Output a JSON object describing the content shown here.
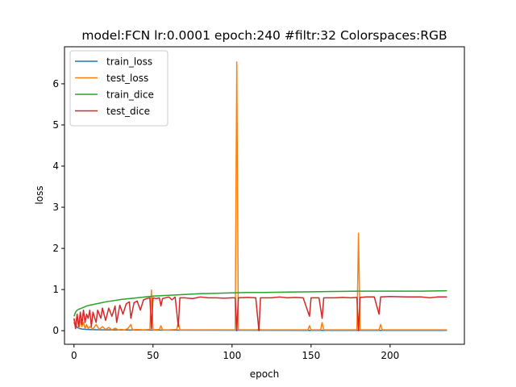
{
  "chart_data": {
    "type": "line",
    "title": "model:FCN lr:0.0001 epoch:240 #filtr:32 Colorspaces:RGB",
    "xlabel": "epoch",
    "ylabel": "loss",
    "xlim": [
      -6,
      247
    ],
    "ylim": [
      -0.33,
      6.9
    ],
    "xticks": [
      0,
      50,
      100,
      150,
      200
    ],
    "yticks": [
      0,
      1,
      2,
      3,
      4,
      5,
      6
    ],
    "xtick_labels": [
      "0",
      "50",
      "100",
      "150",
      "200"
    ],
    "ytick_labels": [
      "0",
      "1",
      "2",
      "3",
      "4",
      "5",
      "6"
    ],
    "grid": false,
    "legend_position": "upper-left",
    "series": [
      {
        "name": "train_loss",
        "color": "#1f77b4",
        "points": [
          [
            0,
            0.2
          ],
          [
            1,
            0.13
          ],
          [
            2,
            0.08
          ],
          [
            3,
            0.06
          ],
          [
            5,
            0.04
          ],
          [
            8,
            0.03
          ],
          [
            12,
            0.025
          ],
          [
            20,
            0.02
          ],
          [
            40,
            0.015
          ],
          [
            80,
            0.012
          ],
          [
            120,
            0.01
          ],
          [
            180,
            0.008
          ],
          [
            236,
            0.007
          ]
        ]
      },
      {
        "name": "test_loss",
        "color": "#ff7f0e",
        "points": [
          [
            0,
            0.3
          ],
          [
            1,
            0.12
          ],
          [
            2,
            0.4
          ],
          [
            3,
            0.05
          ],
          [
            4,
            0.25
          ],
          [
            5,
            0.1
          ],
          [
            6,
            0.2
          ],
          [
            7,
            0.05
          ],
          [
            8,
            0.15
          ],
          [
            9,
            0.05
          ],
          [
            10,
            0.1
          ],
          [
            12,
            0.04
          ],
          [
            14,
            0.15
          ],
          [
            16,
            0.03
          ],
          [
            18,
            0.1
          ],
          [
            20,
            0.03
          ],
          [
            22,
            0.08
          ],
          [
            24,
            0.02
          ],
          [
            26,
            0.06
          ],
          [
            28,
            0.02
          ],
          [
            30,
            0.03
          ],
          [
            32,
            0.02
          ],
          [
            34,
            0.05
          ],
          [
            36,
            0.15
          ],
          [
            37,
            0.02
          ],
          [
            40,
            0.03
          ],
          [
            44,
            0.02
          ],
          [
            48,
            0.03
          ],
          [
            49,
            0.99
          ],
          [
            50,
            0.02
          ],
          [
            54,
            0.03
          ],
          [
            55,
            0.12
          ],
          [
            56,
            0.02
          ],
          [
            60,
            0.02
          ],
          [
            65,
            0.03
          ],
          [
            66,
            0.2
          ],
          [
            67,
            0.02
          ],
          [
            75,
            0.02
          ],
          [
            85,
            0.02
          ],
          [
            95,
            0.02
          ],
          [
            102,
            0.02
          ],
          [
            103,
            6.53
          ],
          [
            104,
            0.02
          ],
          [
            110,
            0.02
          ],
          [
            116,
            0.02
          ],
          [
            117,
            0.05
          ],
          [
            118,
            0.02
          ],
          [
            130,
            0.02
          ],
          [
            140,
            0.02
          ],
          [
            148,
            0.02
          ],
          [
            149,
            0.12
          ],
          [
            150,
            0.02
          ],
          [
            156,
            0.02
          ],
          [
            157,
            0.2
          ],
          [
            158,
            0.02
          ],
          [
            165,
            0.02
          ],
          [
            175,
            0.02
          ],
          [
            179,
            0.02
          ],
          [
            180,
            2.37
          ],
          [
            181,
            0.02
          ],
          [
            188,
            0.02
          ],
          [
            193,
            0.02
          ],
          [
            194,
            0.15
          ],
          [
            195,
            0.02
          ],
          [
            205,
            0.02
          ],
          [
            215,
            0.02
          ],
          [
            225,
            0.02
          ],
          [
            236,
            0.02
          ]
        ]
      },
      {
        "name": "train_dice",
        "color": "#2ca02c",
        "points": [
          [
            0,
            0.35
          ],
          [
            1,
            0.45
          ],
          [
            2,
            0.5
          ],
          [
            3,
            0.52
          ],
          [
            5,
            0.55
          ],
          [
            8,
            0.6
          ],
          [
            10,
            0.62
          ],
          [
            15,
            0.66
          ],
          [
            20,
            0.7
          ],
          [
            30,
            0.76
          ],
          [
            40,
            0.8
          ],
          [
            50,
            0.84
          ],
          [
            60,
            0.86
          ],
          [
            70,
            0.88
          ],
          [
            80,
            0.9
          ],
          [
            90,
            0.91
          ],
          [
            100,
            0.92
          ],
          [
            110,
            0.93
          ],
          [
            120,
            0.93
          ],
          [
            140,
            0.94
          ],
          [
            160,
            0.95
          ],
          [
            180,
            0.96
          ],
          [
            200,
            0.96
          ],
          [
            220,
            0.96
          ],
          [
            236,
            0.97
          ]
        ]
      },
      {
        "name": "test_dice",
        "color": "#d62728",
        "points": [
          [
            0,
            0.3
          ],
          [
            1,
            0.05
          ],
          [
            2,
            0.4
          ],
          [
            3,
            0.1
          ],
          [
            4,
            0.45
          ],
          [
            5,
            0.15
          ],
          [
            6,
            0.5
          ],
          [
            7,
            0.2
          ],
          [
            8,
            0.4
          ],
          [
            9,
            0.3
          ],
          [
            10,
            0.5
          ],
          [
            11,
            0.1
          ],
          [
            12,
            0.45
          ],
          [
            14,
            0.2
          ],
          [
            15,
            0.5
          ],
          [
            17,
            0.3
          ],
          [
            18,
            0.55
          ],
          [
            20,
            0.25
          ],
          [
            22,
            0.55
          ],
          [
            24,
            0.35
          ],
          [
            26,
            0.6
          ],
          [
            27,
            0.2
          ],
          [
            29,
            0.62
          ],
          [
            31,
            0.4
          ],
          [
            33,
            0.65
          ],
          [
            35,
            0.7
          ],
          [
            36,
            0.3
          ],
          [
            38,
            0.68
          ],
          [
            40,
            0.72
          ],
          [
            42,
            0.5
          ],
          [
            44,
            0.75
          ],
          [
            46,
            0.78
          ],
          [
            48,
            0.8
          ],
          [
            49,
            0.05
          ],
          [
            50,
            0.8
          ],
          [
            52,
            0.78
          ],
          [
            54,
            0.8
          ],
          [
            55,
            0.6
          ],
          [
            56,
            0.78
          ],
          [
            58,
            0.8
          ],
          [
            60,
            0.82
          ],
          [
            62,
            0.75
          ],
          [
            64,
            0.82
          ],
          [
            66,
            0.1
          ],
          [
            67,
            0.8
          ],
          [
            70,
            0.8
          ],
          [
            75,
            0.78
          ],
          [
            80,
            0.82
          ],
          [
            85,
            0.8
          ],
          [
            90,
            0.8
          ],
          [
            95,
            0.79
          ],
          [
            100,
            0.8
          ],
          [
            102,
            0.8
          ],
          [
            103,
            0.0
          ],
          [
            104,
            0.8
          ],
          [
            110,
            0.81
          ],
          [
            115,
            0.8
          ],
          [
            117,
            0.0
          ],
          [
            118,
            0.8
          ],
          [
            125,
            0.8
          ],
          [
            130,
            0.82
          ],
          [
            135,
            0.8
          ],
          [
            140,
            0.81
          ],
          [
            145,
            0.8
          ],
          [
            149,
            0.35
          ],
          [
            150,
            0.8
          ],
          [
            155,
            0.8
          ],
          [
            157,
            0.3
          ],
          [
            158,
            0.8
          ],
          [
            165,
            0.8
          ],
          [
            170,
            0.81
          ],
          [
            175,
            0.8
          ],
          [
            179,
            0.81
          ],
          [
            180,
            0.0
          ],
          [
            181,
            0.81
          ],
          [
            185,
            0.82
          ],
          [
            190,
            0.82
          ],
          [
            193,
            0.4
          ],
          [
            194,
            0.82
          ],
          [
            200,
            0.83
          ],
          [
            210,
            0.82
          ],
          [
            220,
            0.82
          ],
          [
            225,
            0.8
          ],
          [
            230,
            0.82
          ],
          [
            236,
            0.82
          ]
        ]
      }
    ]
  }
}
